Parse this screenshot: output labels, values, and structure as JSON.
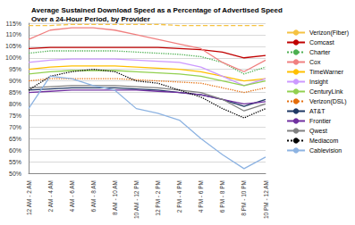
{
  "chart_data": {
    "type": "line",
    "title": "Average Sustained Download Speed as a Percentage of Advertised Speed\nOver a 24-Hour Period, by Provider",
    "categories": [
      "12 AM - 2 AM",
      "2 AM - 4 AM",
      "4 AM - 6 AM",
      "6 AM - 8 AM",
      "8 AM - 10 AM",
      "10 AM - 12 PM",
      "12 PM - 2 PM",
      "2 PM - 4 PM",
      "4 PM - 6 PM",
      "6 PM - 8 PM",
      "8 PM - 10 PM",
      "10 PM - 12 AM"
    ],
    "series": [
      {
        "name": "Verizon(Fiber)",
        "color": "#f5c242",
        "line_style": "dashed",
        "values": [
          114,
          114,
          114.5,
          114.5,
          114.5,
          114.5,
          114.5,
          114,
          114,
          114,
          114,
          114
        ]
      },
      {
        "name": "Comcast",
        "color": "#c00000",
        "line_style": "solid",
        "values": [
          104,
          104.5,
          104.5,
          104.5,
          104.5,
          104.5,
          104.5,
          104,
          103.5,
          102.5,
          100,
          101
        ]
      },
      {
        "name": "Charter",
        "color": "#4caf50",
        "line_style": "dotted",
        "values": [
          102,
          103,
          103,
          103,
          103,
          102.5,
          102,
          101.5,
          100.5,
          98,
          93,
          96
        ]
      },
      {
        "name": "Cox",
        "color": "#f08080",
        "line_style": "solid",
        "values": [
          108,
          112,
          113,
          113,
          112,
          110,
          108,
          106,
          104,
          98,
          94,
          99
        ]
      },
      {
        "name": "TimeWarner",
        "color": "#ffc000",
        "line_style": "solid",
        "values": [
          95,
          96,
          96.5,
          96.5,
          96.5,
          96,
          95.5,
          95,
          94,
          92,
          90,
          91
        ]
      },
      {
        "name": "Insight",
        "color": "#cc99ff",
        "line_style": "solid",
        "values": [
          98,
          99,
          99.5,
          99.5,
          99.5,
          99,
          98.5,
          98,
          96,
          92,
          88,
          91
        ]
      },
      {
        "name": "CenturyLink",
        "color": "#92d050",
        "line_style": "solid",
        "values": [
          93,
          94,
          94.5,
          94.5,
          94.5,
          94,
          93.5,
          93,
          92,
          90,
          88,
          90
        ]
      },
      {
        "name": "Verizon(DSL)",
        "color": "#e46c0a",
        "line_style": "dotted",
        "values": [
          90,
          91,
          91,
          91,
          91,
          90.5,
          90,
          89.5,
          89,
          87,
          85,
          87
        ]
      },
      {
        "name": "AT&T",
        "color": "#1f3864",
        "line_style": "solid",
        "values": [
          86,
          86.5,
          87,
          87,
          87,
          86.5,
          86,
          85,
          84,
          82,
          79,
          82
        ]
      },
      {
        "name": "Frontier",
        "color": "#7030a0",
        "line_style": "solid",
        "values": [
          85,
          85.5,
          86,
          86,
          86,
          86,
          85.5,
          85,
          84,
          82,
          80,
          81
        ]
      },
      {
        "name": "Qwest",
        "color": "#808080",
        "line_style": "solid",
        "values": [
          87,
          87.5,
          88,
          88,
          88,
          87.5,
          87,
          86,
          85,
          82,
          77,
          80
        ]
      },
      {
        "name": "Mediacom",
        "color": "#000000",
        "line_style": "dotted",
        "values": [
          86,
          92,
          94,
          95,
          94,
          90,
          89,
          86,
          83,
          78,
          74,
          78
        ]
      },
      {
        "name": "Cablevision",
        "color": "#8db3e2",
        "line_style": "solid",
        "values": [
          78,
          92,
          91,
          88,
          86,
          78,
          76,
          73,
          65,
          58,
          52,
          57
        ]
      }
    ],
    "ylim": [
      50,
      115
    ],
    "yticks": [
      {
        "value": 50,
        "label": "50%"
      },
      {
        "value": 55,
        "label": "55%"
      },
      {
        "value": 60,
        "label": "60%"
      },
      {
        "value": 65,
        "label": "65%"
      },
      {
        "value": 70,
        "label": "70%"
      },
      {
        "value": 75,
        "label": "75%"
      },
      {
        "value": 80,
        "label": "80%"
      },
      {
        "value": 85,
        "label": "85%"
      },
      {
        "value": 90,
        "label": "90%"
      },
      {
        "value": 95,
        "label": "95%"
      },
      {
        "value": 100,
        "label": "100%"
      },
      {
        "value": 105,
        "label": "105%"
      },
      {
        "value": 110,
        "label": "110%"
      },
      {
        "value": 115,
        "label": "115%"
      }
    ],
    "grid": true,
    "legend": "right",
    "marker": "none"
  }
}
